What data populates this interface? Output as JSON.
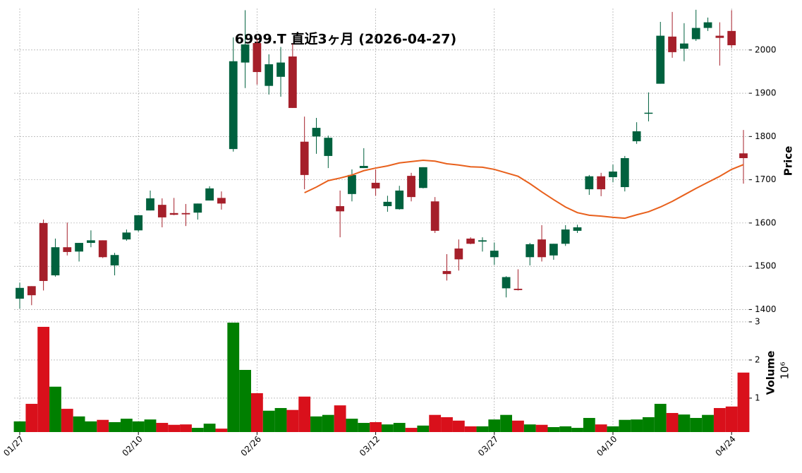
{
  "chart_data": {
    "type": "candlestick",
    "title": "6999.T 直近3ヶ月 (2026-04-27)",
    "categories": [
      "01/27",
      null,
      null,
      null,
      null,
      null,
      null,
      null,
      null,
      null,
      "02/10",
      null,
      null,
      null,
      null,
      null,
      null,
      null,
      null,
      null,
      "02/26",
      null,
      null,
      null,
      null,
      null,
      null,
      null,
      null,
      null,
      "03/12",
      null,
      null,
      null,
      null,
      null,
      null,
      null,
      null,
      null,
      "03/27",
      null,
      null,
      null,
      null,
      null,
      null,
      null,
      null,
      null,
      "04/10",
      null,
      null,
      null,
      null,
      null,
      null,
      null,
      null,
      null,
      "04/24",
      null
    ],
    "open": [
      1425,
      1454,
      1600,
      1479,
      1544,
      1534,
      1554,
      1560,
      1502,
      1562,
      1583,
      1629,
      1642,
      1623,
      1623,
      1624,
      1652,
      1658,
      1771,
      1971,
      2016,
      1917,
      1938,
      1985,
      1788,
      1800,
      1755,
      1639,
      1667,
      1727,
      1693,
      1639,
      1632,
      1709,
      1681,
      1650,
      1489,
      1541,
      1564,
      1557,
      1521,
      1449,
      1448,
      1521,
      1562,
      1525,
      1552,
      1582,
      1678,
      1708,
      1706,
      1683,
      1789,
      1853,
      1922,
      2031,
      2003,
      2025,
      2051,
      2033,
      2044,
      1761
    ],
    "high": [
      1462,
      1454,
      1608,
      1564,
      1601,
      1554,
      1583,
      1560,
      1531,
      1585,
      1618,
      1675,
      1657,
      1658,
      1644,
      1645,
      1685,
      1673,
      2029,
      2092,
      2026,
      1990,
      2007,
      2015,
      1846,
      1843,
      1802,
      1675,
      1724,
      1773,
      1724,
      1663,
      1686,
      1716,
      1729,
      1660,
      1528,
      1562,
      1567,
      1567,
      1555,
      1477,
      1493,
      1554,
      1595,
      1552,
      1595,
      1596,
      1711,
      1716,
      1735,
      1755,
      1833,
      1902,
      2065,
      2088,
      2062,
      2093,
      2075,
      2064,
      2092,
      1815
    ],
    "low": [
      1402,
      1410,
      1444,
      1476,
      1525,
      1511,
      1544,
      1519,
      1479,
      1559,
      1580,
      1629,
      1590,
      1618,
      1593,
      1608,
      1652,
      1631,
      1765,
      1912,
      1920,
      1897,
      1892,
      1866,
      1678,
      1760,
      1727,
      1567,
      1650,
      1727,
      1663,
      1626,
      1631,
      1650,
      1680,
      1577,
      1467,
      1490,
      1551,
      1534,
      1503,
      1428,
      1444,
      1502,
      1511,
      1515,
      1547,
      1577,
      1665,
      1662,
      1694,
      1673,
      1783,
      1835,
      1922,
      1982,
      1974,
      2021,
      2044,
      1964,
      2005,
      1691
    ],
    "close": [
      1450,
      1433,
      1466,
      1544,
      1533,
      1554,
      1560,
      1521,
      1526,
      1578,
      1618,
      1657,
      1613,
      1619,
      1620,
      1645,
      1680,
      1645,
      1974,
      2013,
      1949,
      1967,
      1971,
      1866,
      1711,
      1820,
      1797,
      1627,
      1711,
      1732,
      1680,
      1649,
      1675,
      1660,
      1729,
      1582,
      1482,
      1516,
      1552,
      1560,
      1536,
      1475,
      1445,
      1551,
      1521,
      1552,
      1585,
      1590,
      1708,
      1678,
      1719,
      1750,
      1812,
      1855,
      2033,
      1995,
      2015,
      2051,
      2064,
      2028,
      2011,
      1750
    ],
    "moving_average": [
      null,
      null,
      null,
      null,
      null,
      null,
      null,
      null,
      null,
      null,
      null,
      null,
      null,
      null,
      null,
      null,
      null,
      null,
      null,
      null,
      null,
      null,
      null,
      null,
      1670,
      1683,
      1698,
      1704,
      1711,
      1721,
      1727,
      1732,
      1739,
      1742,
      1745,
      1743,
      1737,
      1734,
      1730,
      1729,
      1724,
      1716,
      1708,
      1691,
      1672,
      1654,
      1637,
      1624,
      1618,
      1616,
      1613,
      1611,
      1619,
      1626,
      1637,
      1650,
      1665,
      1680,
      1694,
      1708,
      1724,
      1735
    ],
    "ma_color": "#e8601c",
    "up_color": "#00613e",
    "down_color": "#a51f2a",
    "ylim": [
      1386,
      2096
    ],
    "yticks": [
      1400,
      1500,
      1600,
      1700,
      1800,
      1900,
      2000
    ],
    "ylabel": "Price",
    "grid": true,
    "volume": {
      "values": [
        0.39,
        0.85,
        2.87,
        1.3,
        0.72,
        0.52,
        0.39,
        0.43,
        0.37,
        0.46,
        0.39,
        0.44,
        0.35,
        0.3,
        0.31,
        0.22,
        0.33,
        0.2,
        2.98,
        1.74,
        1.13,
        0.67,
        0.74,
        0.69,
        1.04,
        0.52,
        0.56,
        0.81,
        0.46,
        0.35,
        0.37,
        0.31,
        0.35,
        0.22,
        0.28,
        0.56,
        0.5,
        0.41,
        0.26,
        0.26,
        0.44,
        0.56,
        0.41,
        0.31,
        0.3,
        0.24,
        0.26,
        0.22,
        0.48,
        0.31,
        0.26,
        0.43,
        0.44,
        0.5,
        0.85,
        0.61,
        0.57,
        0.48,
        0.56,
        0.74,
        0.78,
        1.67
      ],
      "ylim": [
        0.11,
        3.11
      ],
      "yticks": [
        1,
        2,
        3
      ],
      "ylabel": "Volume",
      "scale_label": "10⁶",
      "up_color": "#007f00",
      "down_color": "#d9101b"
    }
  }
}
